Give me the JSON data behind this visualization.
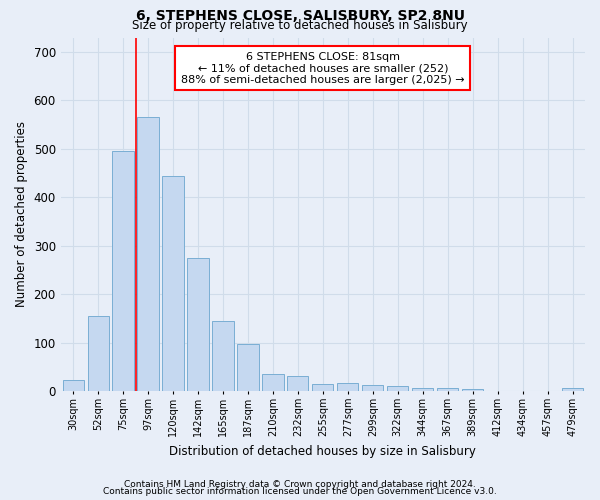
{
  "title1": "6, STEPHENS CLOSE, SALISBURY, SP2 8NU",
  "title2": "Size of property relative to detached houses in Salisbury",
  "xlabel": "Distribution of detached houses by size in Salisbury",
  "ylabel": "Number of detached properties",
  "categories": [
    "30sqm",
    "52sqm",
    "75sqm",
    "97sqm",
    "120sqm",
    "142sqm",
    "165sqm",
    "187sqm",
    "210sqm",
    "232sqm",
    "255sqm",
    "277sqm",
    "299sqm",
    "322sqm",
    "344sqm",
    "367sqm",
    "389sqm",
    "412sqm",
    "434sqm",
    "457sqm",
    "479sqm"
  ],
  "values": [
    22,
    155,
    495,
    565,
    445,
    275,
    145,
    97,
    35,
    32,
    15,
    17,
    12,
    10,
    7,
    7,
    5,
    0,
    0,
    0,
    6
  ],
  "bar_color": "#c5d8f0",
  "bar_edge_color": "#7aaed4",
  "annotation_text_line1": "6 STEPHENS CLOSE: 81sqm",
  "annotation_text_line2": "← 11% of detached houses are smaller (252)",
  "annotation_text_line3": "88% of semi-detached houses are larger (2,025) →",
  "annotation_box_facecolor": "white",
  "annotation_box_edgecolor": "red",
  "vline_color": "red",
  "footer1": "Contains HM Land Registry data © Crown copyright and database right 2024.",
  "footer2": "Contains public sector information licensed under the Open Government Licence v3.0.",
  "ylim": [
    0,
    730
  ],
  "yticks": [
    0,
    100,
    200,
    300,
    400,
    500,
    600,
    700
  ],
  "grid_color": "#d0dcea",
  "background_color": "#e8eef8",
  "vline_x": 2.5
}
